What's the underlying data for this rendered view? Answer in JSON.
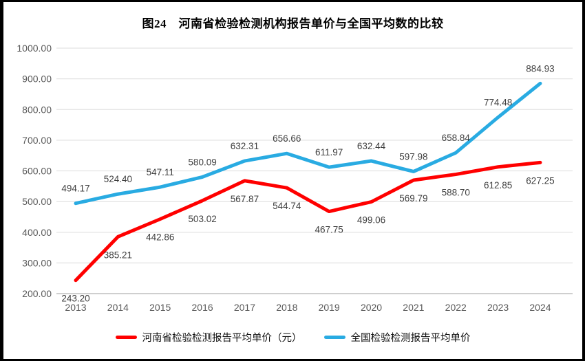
{
  "title": "图24　河南省检验检测机构报告单价与全国平均数的比较",
  "chart_data": {
    "type": "line",
    "categories": [
      "2013",
      "2014",
      "2015",
      "2016",
      "2017",
      "2018",
      "2019",
      "2020",
      "2021",
      "2022",
      "2023",
      "2024"
    ],
    "series": [
      {
        "name": "河南省检验检测报告平均单价（元）",
        "color": "#FF0000",
        "label_position": "below",
        "values": [
          243.2,
          385.21,
          442.86,
          503.02,
          567.87,
          544.74,
          467.75,
          499.06,
          569.79,
          588.7,
          612.85,
          627.25
        ]
      },
      {
        "name": "全国检验检测报告平均单价",
        "color": "#29ABE2",
        "label_position": "above",
        "values": [
          494.17,
          524.4,
          547.11,
          580.09,
          632.31,
          656.66,
          611.97,
          632.44,
          597.98,
          658.84,
          774.48,
          884.93
        ]
      }
    ],
    "xlabel": "",
    "ylabel": "",
    "ylim": [
      200,
      1000
    ],
    "ytick_step": 100,
    "ytick_labels": [
      "200.00",
      "300.00",
      "400.00",
      "500.00",
      "600.00",
      "700.00",
      "800.00",
      "900.00",
      "1000.00"
    ],
    "grid": true,
    "data_labels": true,
    "legend_position": "bottom"
  }
}
